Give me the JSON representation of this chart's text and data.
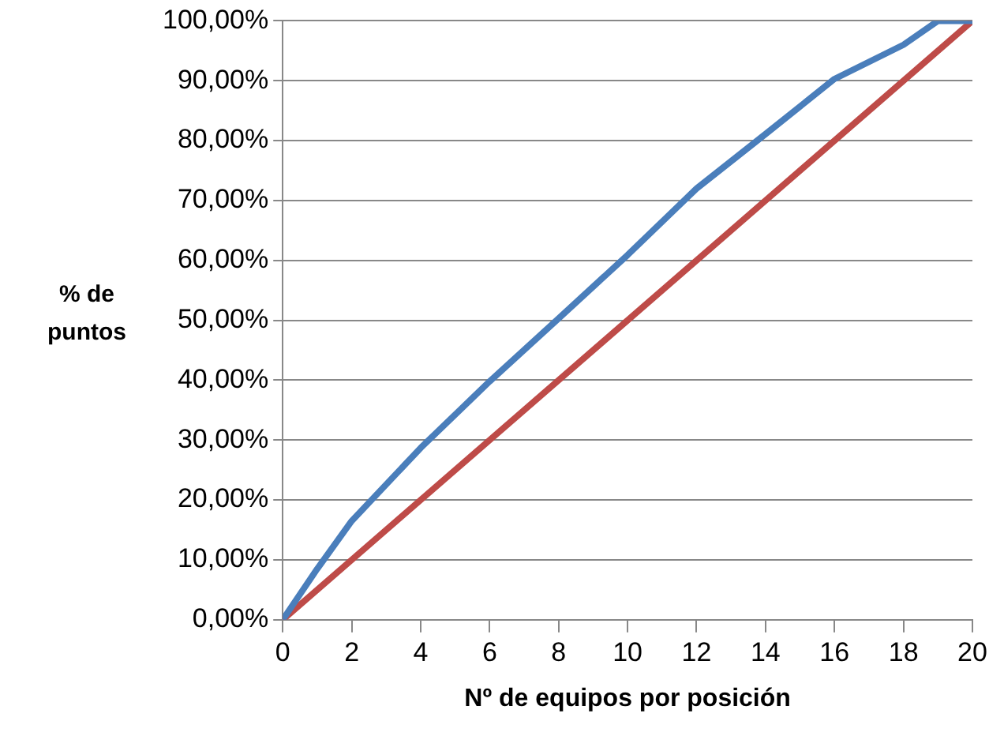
{
  "chart_data": {
    "type": "line",
    "xlabel": "Nº de equipos por posición",
    "ylabel": "% de puntos",
    "xlim": [
      0,
      20
    ],
    "xticks": [
      0,
      2,
      4,
      6,
      8,
      10,
      12,
      14,
      16,
      18,
      20
    ],
    "ylim": [
      0,
      100
    ],
    "yticks": [
      {
        "value": 0,
        "label": "0,00%"
      },
      {
        "value": 10,
        "label": "10,00%"
      },
      {
        "value": 20,
        "label": "20,00%"
      },
      {
        "value": 30,
        "label": "30,00%"
      },
      {
        "value": 40,
        "label": "40,00%"
      },
      {
        "value": 50,
        "label": "50,00%"
      },
      {
        "value": 60,
        "label": "60,00%"
      },
      {
        "value": 70,
        "label": "70,00%"
      },
      {
        "value": 80,
        "label": "80,00%"
      },
      {
        "value": 90,
        "label": "90,00%"
      },
      {
        "value": 100,
        "label": "100,00%"
      }
    ],
    "grid": "y",
    "legend": false,
    "marker": "none",
    "line_style": "solid",
    "series": [
      {
        "color": "#4a7ebb",
        "x": [
          0,
          1,
          2,
          4,
          6,
          8,
          10,
          12,
          14,
          16,
          18,
          19,
          20
        ],
        "values": [
          0,
          8.5,
          16.5,
          28.7,
          39.8,
          50.3,
          60.9,
          72,
          81.1,
          90.3,
          96,
          100,
          100
        ]
      },
      {
        "color": "#be4b48",
        "x": [
          0,
          20
        ],
        "values": [
          0,
          100
        ]
      }
    ]
  }
}
